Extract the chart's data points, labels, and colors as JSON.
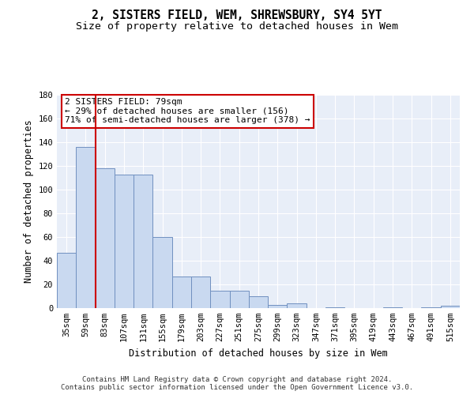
{
  "title": "2, SISTERS FIELD, WEM, SHREWSBURY, SY4 5YT",
  "subtitle": "Size of property relative to detached houses in Wem",
  "xlabel": "Distribution of detached houses by size in Wem",
  "ylabel": "Number of detached properties",
  "bar_values": [
    47,
    136,
    118,
    113,
    113,
    60,
    27,
    27,
    15,
    15,
    10,
    3,
    4,
    0,
    1,
    0,
    0,
    1,
    0,
    1,
    2
  ],
  "categories": [
    "35sqm",
    "59sqm",
    "83sqm",
    "107sqm",
    "131sqm",
    "155sqm",
    "179sqm",
    "203sqm",
    "227sqm",
    "251sqm",
    "275sqm",
    "299sqm",
    "323sqm",
    "347sqm",
    "371sqm",
    "395sqm",
    "419sqm",
    "443sqm",
    "467sqm",
    "491sqm",
    "515sqm"
  ],
  "bar_color": "#c9d9f0",
  "bar_edge_color": "#7090c0",
  "background_color": "#e8eef8",
  "grid_color": "#ffffff",
  "vline_color": "#cc0000",
  "annotation_text": "2 SISTERS FIELD: 79sqm\n← 29% of detached houses are smaller (156)\n71% of semi-detached houses are larger (378) →",
  "annotation_box_color": "#ffffff",
  "annotation_box_edge": "#cc0000",
  "ylim": [
    0,
    180
  ],
  "yticks": [
    0,
    20,
    40,
    60,
    80,
    100,
    120,
    140,
    160,
    180
  ],
  "footer": "Contains HM Land Registry data © Crown copyright and database right 2024.\nContains public sector information licensed under the Open Government Licence v3.0.",
  "title_fontsize": 10.5,
  "subtitle_fontsize": 9.5,
  "annotation_fontsize": 8,
  "ylabel_fontsize": 8.5,
  "xlabel_fontsize": 8.5,
  "tick_fontsize": 7.5,
  "footer_fontsize": 6.5
}
